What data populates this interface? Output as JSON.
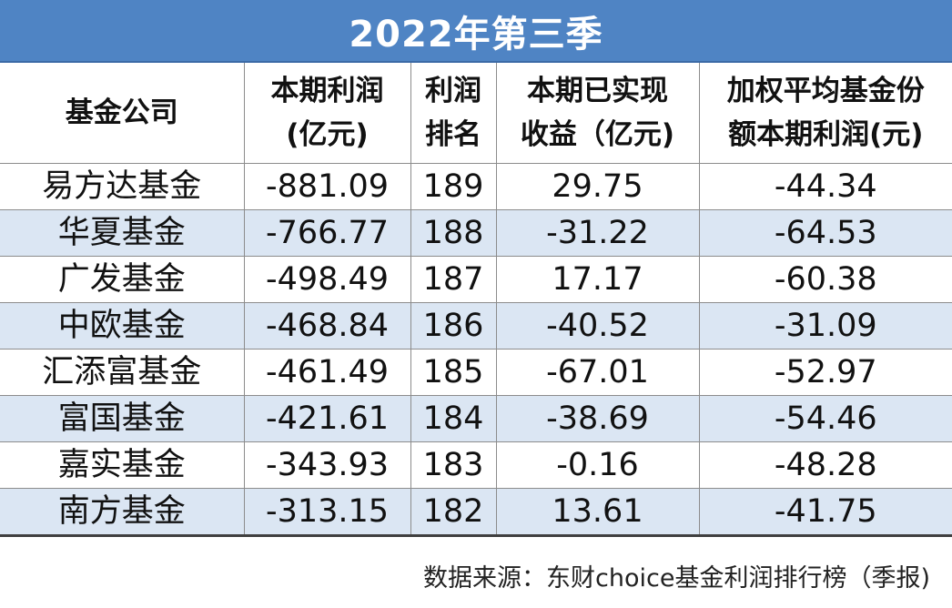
{
  "title": "2022年第三季",
  "headers": [
    {
      "line1": "基金公司",
      "line2": ""
    },
    {
      "line1": "本期利润",
      "line2": "(亿元)"
    },
    {
      "line1": "利润",
      "line2": "排名"
    },
    {
      "line1": "本期已实现",
      "line2": "收益（亿元)"
    },
    {
      "line1": "加权平均基金份",
      "line2": "额本期利润(元)"
    }
  ],
  "rows": [
    [
      "易方达基金",
      "-881.09",
      "189",
      "29.75",
      "-44.34"
    ],
    [
      "华夏基金",
      "-766.77",
      "188",
      "-31.22",
      "-64.53"
    ],
    [
      "广发基金",
      "-498.49",
      "187",
      "17.17",
      "-60.38"
    ],
    [
      "中欧基金",
      "-468.84",
      "186",
      "-40.52",
      "-31.09"
    ],
    [
      "汇添富基金",
      "-461.49",
      "185",
      "-67.01",
      "-52.97"
    ],
    [
      "富国基金",
      "-421.61",
      "184",
      "-38.69",
      "-54.46"
    ],
    [
      "嘉实基金",
      "-343.93",
      "183",
      "-0.16",
      "-48.28"
    ],
    [
      "南方基金",
      "-313.15",
      "182",
      "13.61",
      "-41.75"
    ]
  ],
  "source": "数据来源：东财choice基金利润排行榜（季报)",
  "colors": {
    "title_bg": "#4f84c4",
    "stripe_bg": "#dbe6f3"
  }
}
